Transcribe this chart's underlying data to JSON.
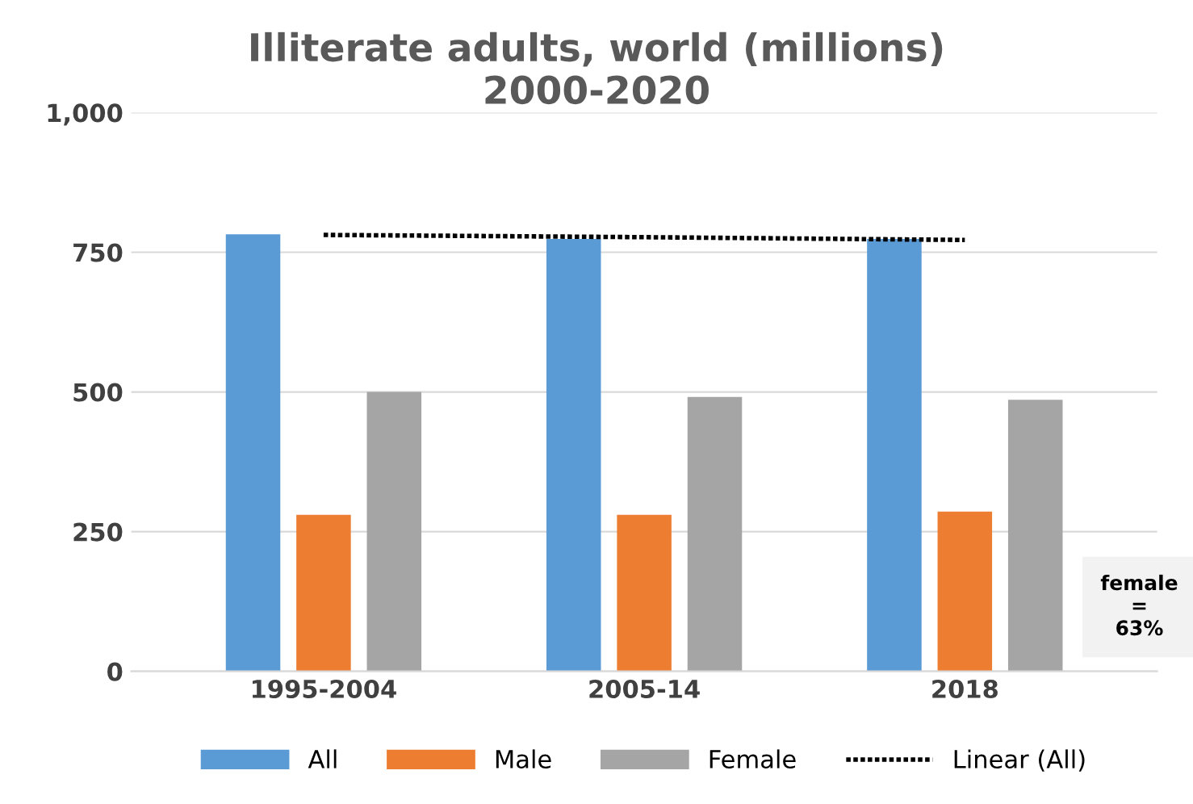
{
  "chart_data": {
    "type": "bar",
    "title": "Illiterate adults, world (millions)\n2000-2020",
    "categories": [
      "1995-2004",
      "2005-14",
      "2018"
    ],
    "series": [
      {
        "name": "All",
        "color": "#5b9bd5",
        "values": [
          782,
          774,
          774
        ]
      },
      {
        "name": "Male",
        "color": "#ed7d31",
        "values": [
          280,
          280,
          286
        ]
      },
      {
        "name": "Female",
        "color": "#a5a5a5",
        "values": [
          500,
          491,
          486
        ]
      },
      {
        "name": "Linear (All)",
        "type": "line",
        "color": "#000000",
        "line_style": "dotted",
        "values": [
          781,
          777,
          772
        ]
      }
    ],
    "ylim": [
      0,
      1000
    ],
    "yticks": [
      0,
      250,
      500,
      750,
      {
        "value": 1000,
        "label": "1,000"
      }
    ],
    "grid": "y",
    "legend": "bottom",
    "annotations": [
      "female\n=\n63%"
    ]
  }
}
